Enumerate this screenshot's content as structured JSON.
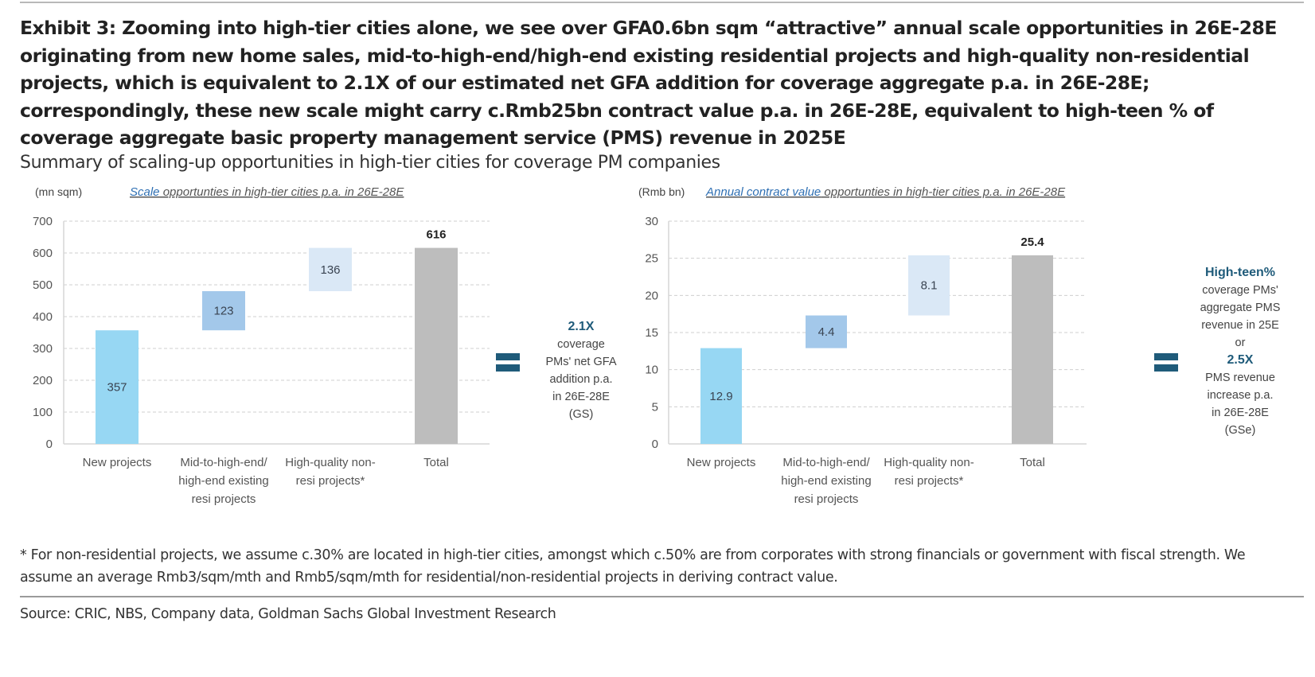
{
  "header": {
    "title": "Exhibit 3: Zooming into high-tier cities alone, we see over GFA0.6bn sqm “attractive” annual scale opportunities in 26E-28E originating from new home sales, mid-to-high-end/high-end existing residential projects and high-quality non-residential projects, which is equivalent to 2.1X of our estimated net GFA addition for coverage aggregate p.a. in 26E-28E; correspondingly, these new scale might carry c.Rmb25bn contract value p.a. in 26E-28E, equivalent to high-teen % of coverage aggregate basic property management service (PMS) revenue in 2025E",
    "subtitle": "Summary of scaling-up opportunities in high-tier cities for coverage PM companies"
  },
  "colors": {
    "new_projects": "#97d7f3",
    "existing_resi": "#a3c8ea",
    "non_resi": "#dae8f6",
    "total": "#bdbdbd",
    "accent": "#1f5b7a",
    "title_accent": "#2e6fb3"
  },
  "chart_data": [
    {
      "type": "bar",
      "subtype": "waterfall",
      "unit": "(mn sqm)",
      "title_accent": "Scale",
      "title_rest": " opportunties in high-tier cities p.a. in 26E-28E",
      "categories": [
        [
          "New projects"
        ],
        [
          "Mid-to-high-end/",
          "high-end existing",
          "resi projects"
        ],
        [
          "High-quality non-",
          "resi projects*"
        ],
        [
          "Total"
        ]
      ],
      "values": [
        357,
        123,
        136,
        616
      ],
      "value_labels": [
        "357",
        "123",
        "136",
        "616"
      ],
      "bases": [
        0,
        357,
        480,
        0
      ],
      "ylim": [
        0,
        700
      ],
      "yticks": [
        0,
        100,
        200,
        300,
        400,
        500,
        600,
        700
      ],
      "grid": true,
      "legend": "none"
    },
    {
      "type": "bar",
      "subtype": "waterfall",
      "unit": "(Rmb bn)",
      "title_accent": "Annual contract value",
      "title_rest": " opportunties in high-tier cities p.a. in 26E-28E",
      "categories": [
        [
          "New projects"
        ],
        [
          "Mid-to-high-end/",
          "high-end existing",
          "resi projects"
        ],
        [
          "High-quality non-",
          "resi projects*"
        ],
        [
          "Total"
        ]
      ],
      "values": [
        12.9,
        4.4,
        8.1,
        25.4
      ],
      "value_labels": [
        "12.9",
        "4.4",
        "8.1",
        "25.4"
      ],
      "bases": [
        0,
        12.9,
        17.3,
        0
      ],
      "ylim": [
        0,
        30
      ],
      "yticks": [
        0,
        5,
        10,
        15,
        20,
        25,
        30
      ],
      "grid": true,
      "legend": "none"
    }
  ],
  "side_left": {
    "highlight": "2.1X",
    "lines": [
      "coverage",
      "PMs' net GFA",
      "addition p.a.",
      "in 26E-28E",
      "(GS)"
    ]
  },
  "side_right": {
    "highlight1": "High-teen%",
    "lines1": [
      "coverage PMs'",
      "aggregate PMS",
      "revenue in 25E",
      "or"
    ],
    "highlight2": "2.5X",
    "lines2": [
      "PMS revenue",
      "increase p.a.",
      "in 26E-28E",
      "(GSe)"
    ]
  },
  "footnote": "* For non-residential projects, we assume c.30% are located in high-tier cities, amongst which c.50% are from corporates with strong financials or government with fiscal strength. We assume an average Rmb3/sqm/mth and Rmb5/sqm/mth for residential/non-residential projects in deriving contract value.",
  "source": "Source:  CRIC, NBS, Company data, Goldman Sachs Global Investment Research"
}
